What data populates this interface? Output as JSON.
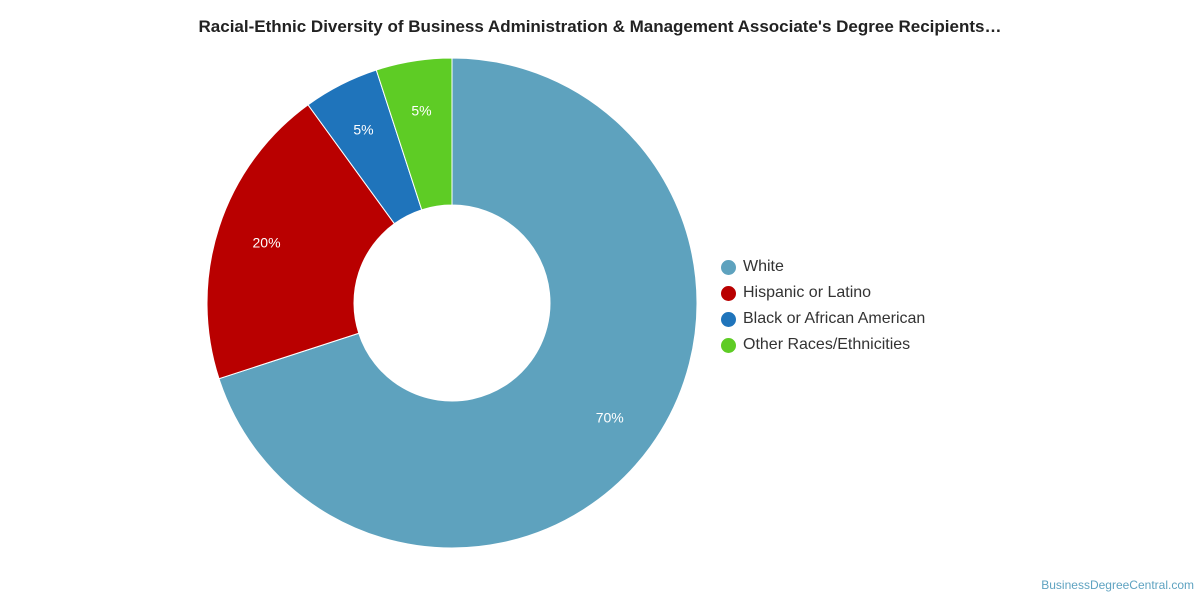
{
  "chart_data": {
    "type": "pie",
    "title": "Racial-Ethnic Diversity of Business Administration & Management Associate's Degree Recipients…",
    "donut": true,
    "legend_position": "right",
    "slices": [
      {
        "name": "White",
        "value": 70,
        "label": "70%",
        "color": "#5ea2be"
      },
      {
        "name": "Hispanic or Latino",
        "value": 20,
        "label": "20%",
        "color": "#b90000"
      },
      {
        "name": "Black or African American",
        "value": 5,
        "label": "5%",
        "color": "#1f74bb"
      },
      {
        "name": "Other Races/Ethnicities",
        "value": 5,
        "label": "5%",
        "color": "#5ecc25"
      }
    ]
  },
  "footer": {
    "source": "BusinessDegreeCentral.com"
  }
}
